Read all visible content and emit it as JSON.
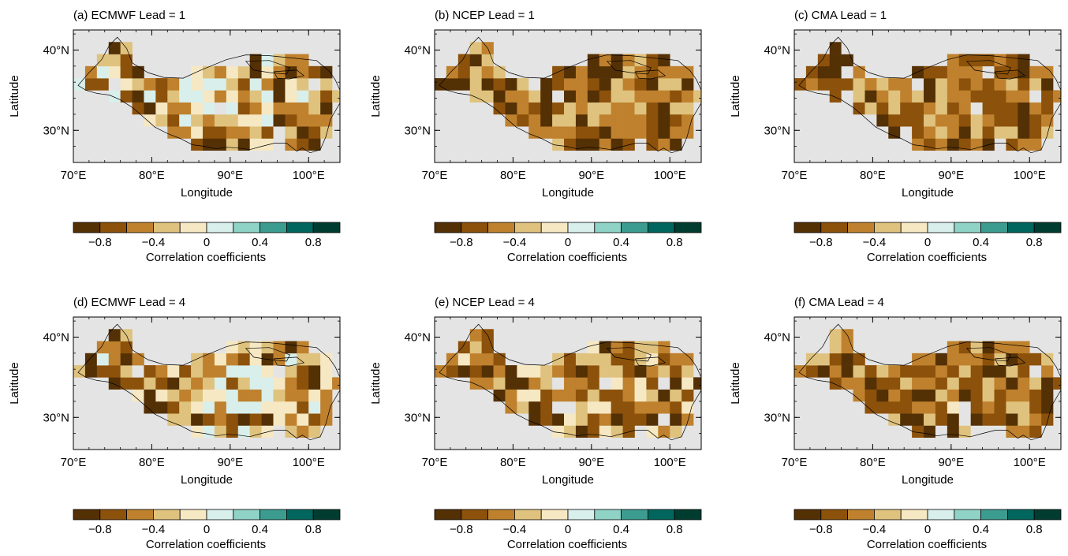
{
  "panels": [
    {
      "title": "(a) ECMWF  Lead = 1",
      "model": "ECMWF",
      "lead": 1
    },
    {
      "title": "(b) NCEP  Lead = 1",
      "model": "NCEP",
      "lead": 1
    },
    {
      "title": "(c) CMA  Lead = 1",
      "model": "CMA",
      "lead": 1
    },
    {
      "title": "(d) ECMWF  Lead = 4",
      "model": "ECMWF",
      "lead": 4
    },
    {
      "title": "(e) NCEP  Lead = 4",
      "model": "NCEP",
      "lead": 4
    },
    {
      "title": "(f) CMA  Lead = 4",
      "model": "CMA",
      "lead": 4
    }
  ],
  "axes": {
    "xlabel": "Longitude",
    "ylabel": "Latitude",
    "x_ticks": [
      70,
      80,
      90,
      100
    ],
    "x_tick_labels": [
      "70°E",
      "80°E",
      "90°E",
      "100°E"
    ],
    "y_ticks": [
      30,
      40
    ],
    "y_tick_labels": [
      "30°N",
      "40°N"
    ],
    "xlim": [
      70,
      104
    ],
    "ylim": [
      26,
      42.5
    ]
  },
  "colorbar": {
    "label": "Correlation coefficients",
    "levels": [
      -1.0,
      -0.8,
      -0.6,
      -0.4,
      -0.2,
      0,
      0.2,
      0.4,
      0.6,
      0.8,
      1.0
    ],
    "tick_values": [
      -0.8,
      -0.4,
      0,
      0.4,
      0.8
    ],
    "tick_labels": [
      "−0.8",
      "−0.4",
      "0",
      "0.4",
      "0.8"
    ],
    "colors": [
      "#543005",
      "#8c510a",
      "#bf812d",
      "#dfc27d",
      "#f6e8c3",
      "#d8efec",
      "#8fd3c6",
      "#3d9c90",
      "#01665e",
      "#003c30"
    ]
  },
  "colors": {
    "map_background": "#e4e4e4",
    "no_data": "#e4e4e4",
    "coastline": "#000000"
  }
}
